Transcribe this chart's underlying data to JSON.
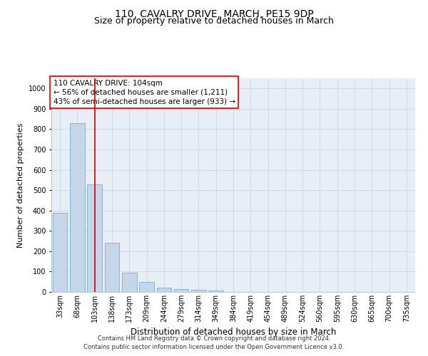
{
  "title": "110, CAVALRY DRIVE, MARCH, PE15 9DP",
  "subtitle": "Size of property relative to detached houses in March",
  "xlabel": "Distribution of detached houses by size in March",
  "ylabel": "Number of detached properties",
  "bar_color": "#c5d6ea",
  "bar_edge_color": "#7aadd4",
  "vline_color": "#cc0000",
  "vline_x": 2,
  "annotation_text": "110 CAVALRY DRIVE: 104sqm\n← 56% of detached houses are smaller (1,211)\n43% of semi-detached houses are larger (933) →",
  "annotation_box_color": "#ffffff",
  "annotation_box_edge": "#cc0000",
  "categories": [
    "33sqm",
    "68sqm",
    "103sqm",
    "138sqm",
    "173sqm",
    "209sqm",
    "244sqm",
    "279sqm",
    "314sqm",
    "349sqm",
    "384sqm",
    "419sqm",
    "454sqm",
    "489sqm",
    "524sqm",
    "560sqm",
    "595sqm",
    "630sqm",
    "665sqm",
    "700sqm",
    "735sqm"
  ],
  "values": [
    390,
    830,
    530,
    240,
    95,
    50,
    20,
    15,
    10,
    7,
    0,
    0,
    0,
    0,
    0,
    0,
    0,
    0,
    0,
    0,
    0
  ],
  "ylim": [
    0,
    1050
  ],
  "yticks": [
    0,
    100,
    200,
    300,
    400,
    500,
    600,
    700,
    800,
    900,
    1000
  ],
  "grid_color": "#d0d8e8",
  "bg_color": "#e8eef5",
  "footer_text": "Contains HM Land Registry data © Crown copyright and database right 2024.\nContains public sector information licensed under the Open Government Licence v3.0.",
  "title_fontsize": 10,
  "subtitle_fontsize": 9,
  "xlabel_fontsize": 8.5,
  "ylabel_fontsize": 8,
  "tick_fontsize": 7,
  "annot_fontsize": 7.5,
  "footer_fontsize": 6
}
